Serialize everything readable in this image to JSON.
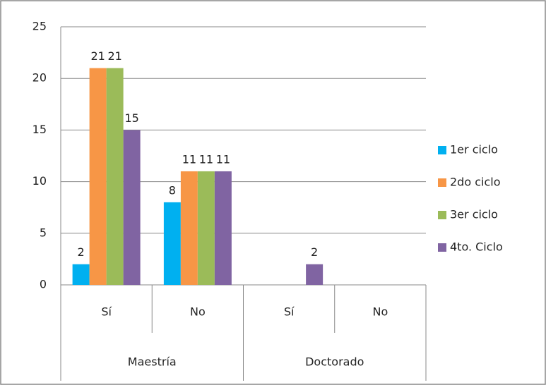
{
  "chart_data": {
    "type": "bar",
    "groups": [
      {
        "name": "Maestría",
        "categories": [
          "Sí",
          "No"
        ]
      },
      {
        "name": "Doctorado",
        "categories": [
          "Sí",
          "No"
        ]
      }
    ],
    "series": [
      {
        "name": "1er ciclo",
        "color": "#00b0f0",
        "values": [
          2,
          8,
          null,
          null
        ]
      },
      {
        "name": "2do ciclo",
        "color": "#f79646",
        "values": [
          21,
          11,
          null,
          null
        ]
      },
      {
        "name": "3er ciclo",
        "color": "#9bbb59",
        "values": [
          21,
          11,
          null,
          null
        ]
      },
      {
        "name": "4to. Ciclo",
        "color": "#8064a2",
        "values": [
          15,
          11,
          2,
          null
        ]
      }
    ],
    "ylim": [
      0,
      25
    ],
    "yticks": [
      0,
      5,
      10,
      15,
      20,
      25
    ],
    "grid": true,
    "legend": "right",
    "data_labels": true
  }
}
